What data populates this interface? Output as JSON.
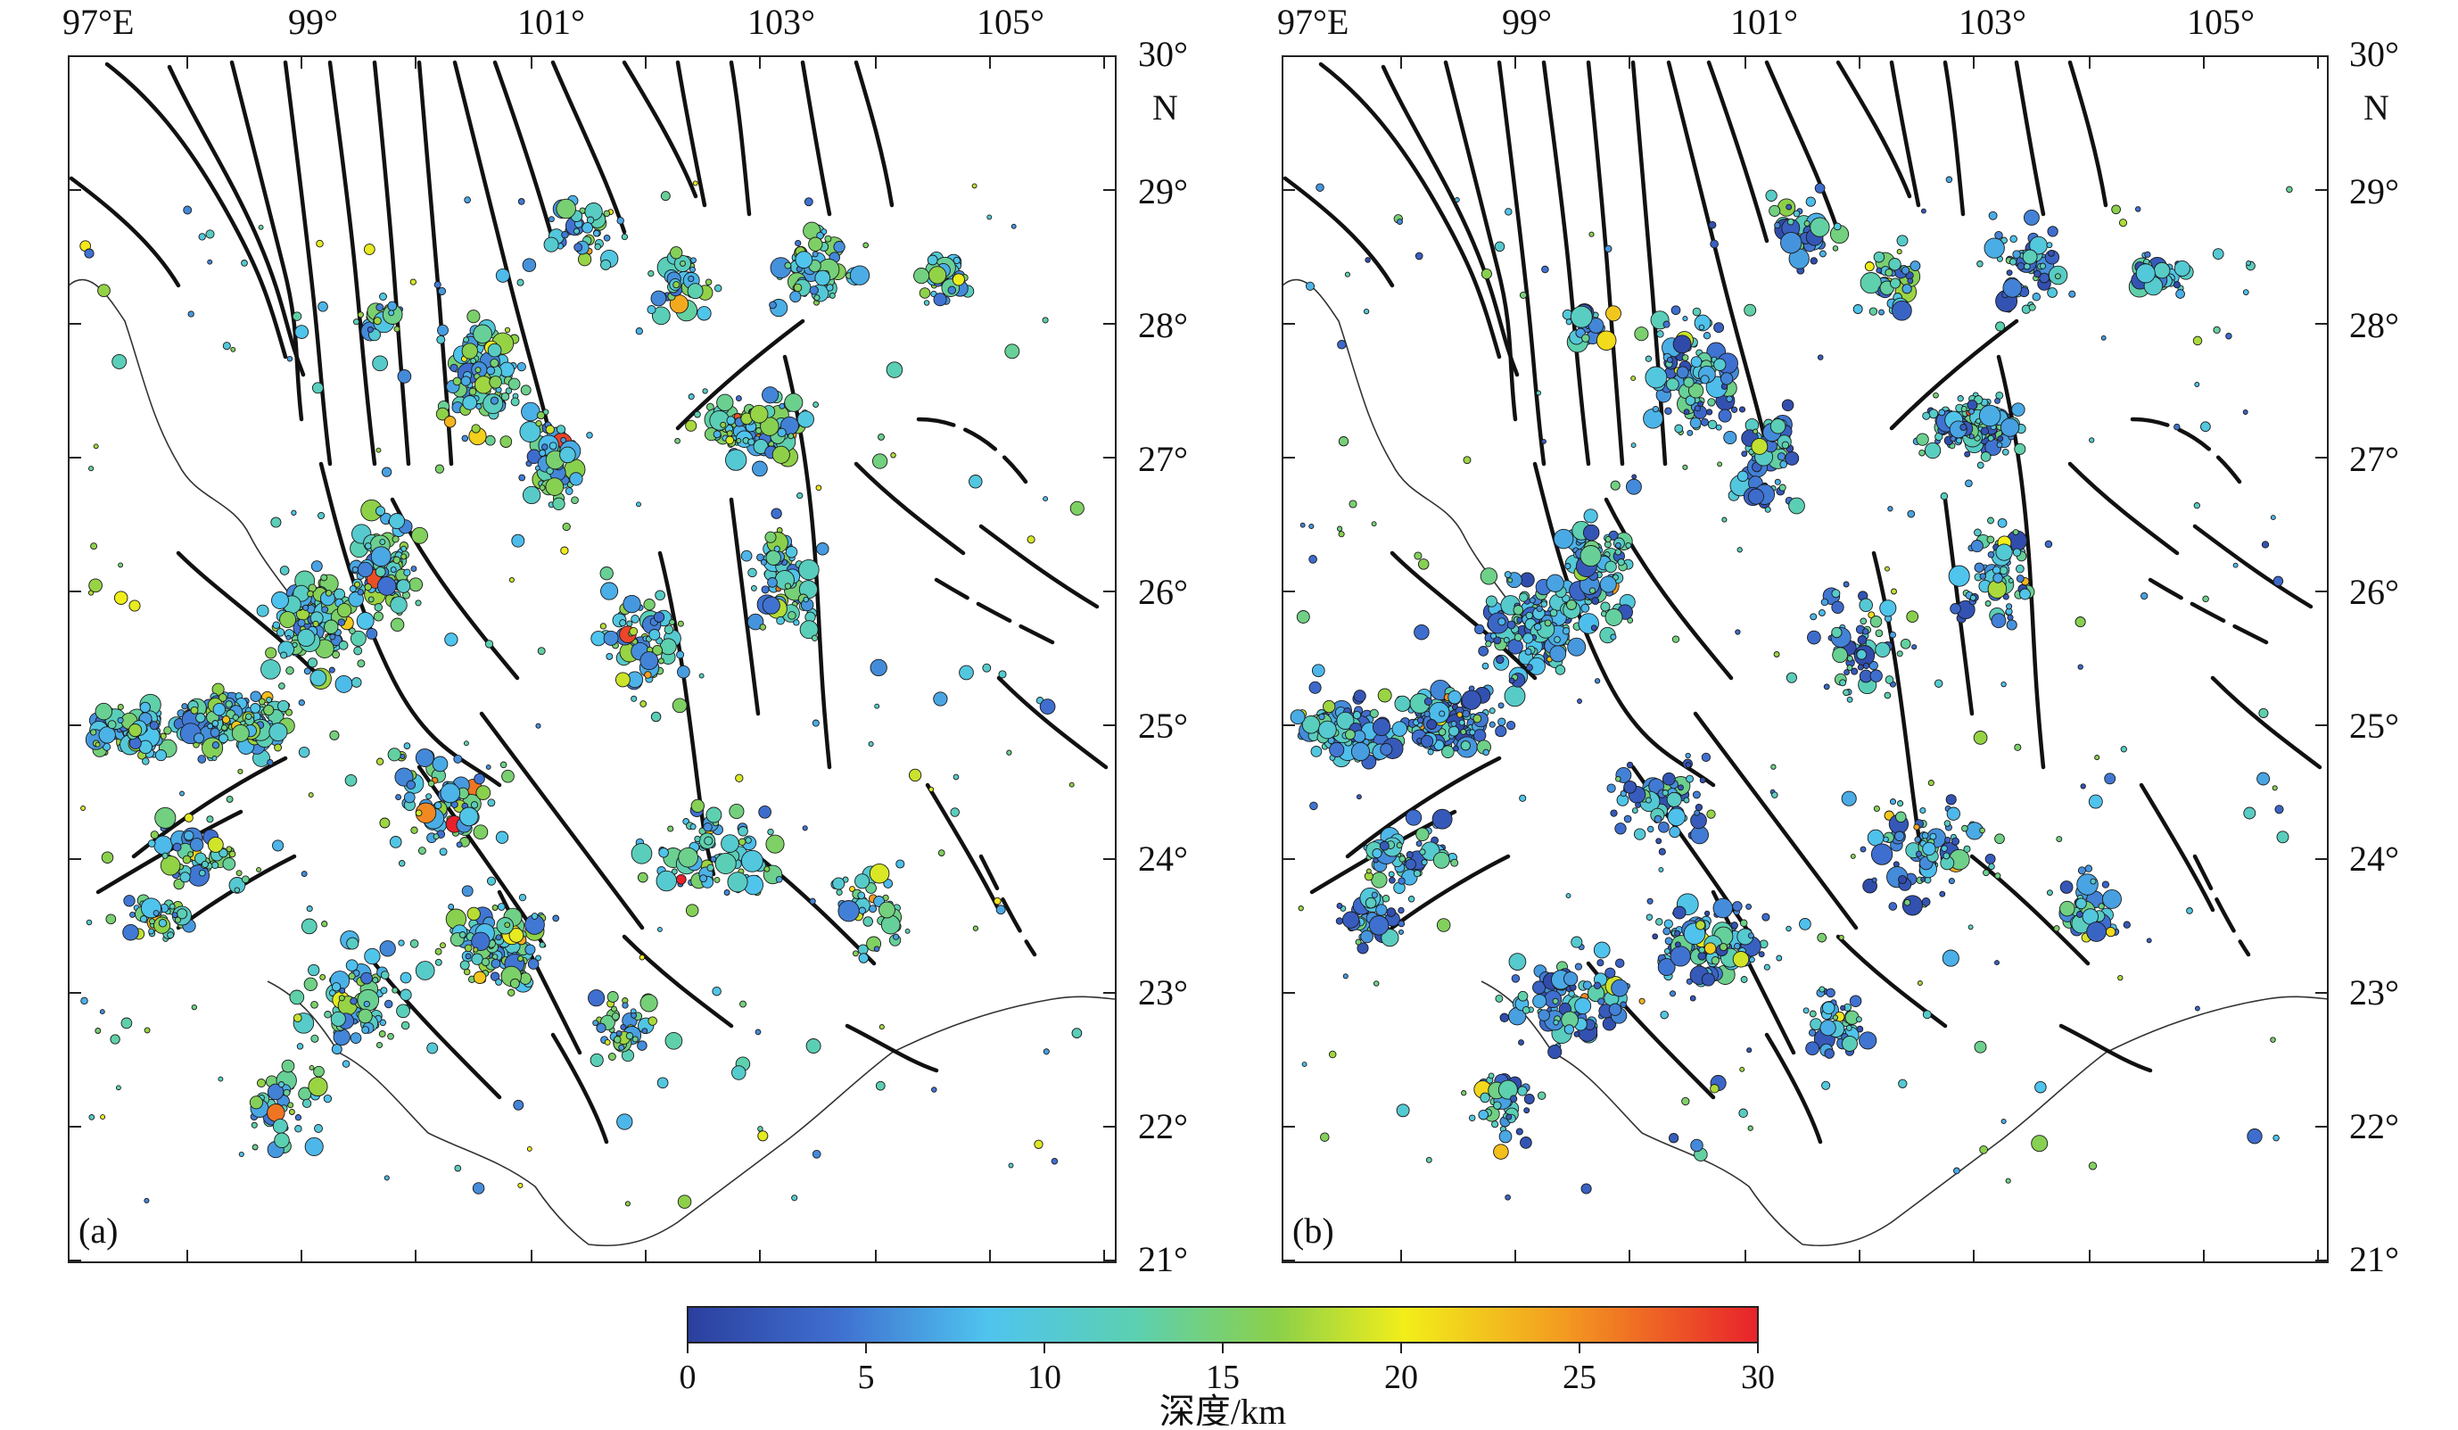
{
  "lon_labels": [
    "97°E",
    "99°",
    "101°",
    "103°",
    "105°"
  ],
  "lat_labels": [
    "30°",
    "N",
    "29°",
    "28°",
    "27°",
    "26°",
    "25°",
    "24°",
    "23°",
    "22°",
    "21°"
  ],
  "panels": [
    {
      "id": "a",
      "label": "(a)"
    },
    {
      "id": "b",
      "label": "(b)"
    }
  ],
  "colorbar": {
    "title": "深度/km",
    "ticks": [
      "0",
      "5",
      "10",
      "15",
      "20",
      "25",
      "30"
    ],
    "range": [
      0,
      30
    ],
    "colormap": [
      "#2b3f9e",
      "#3f6fd0",
      "#4fc4ee",
      "#5cd0b0",
      "#8bd04a",
      "#f2ee1a",
      "#f39a20",
      "#e8222b"
    ]
  },
  "colors": {
    "fault": "#111111",
    "border": "#333333"
  }
}
